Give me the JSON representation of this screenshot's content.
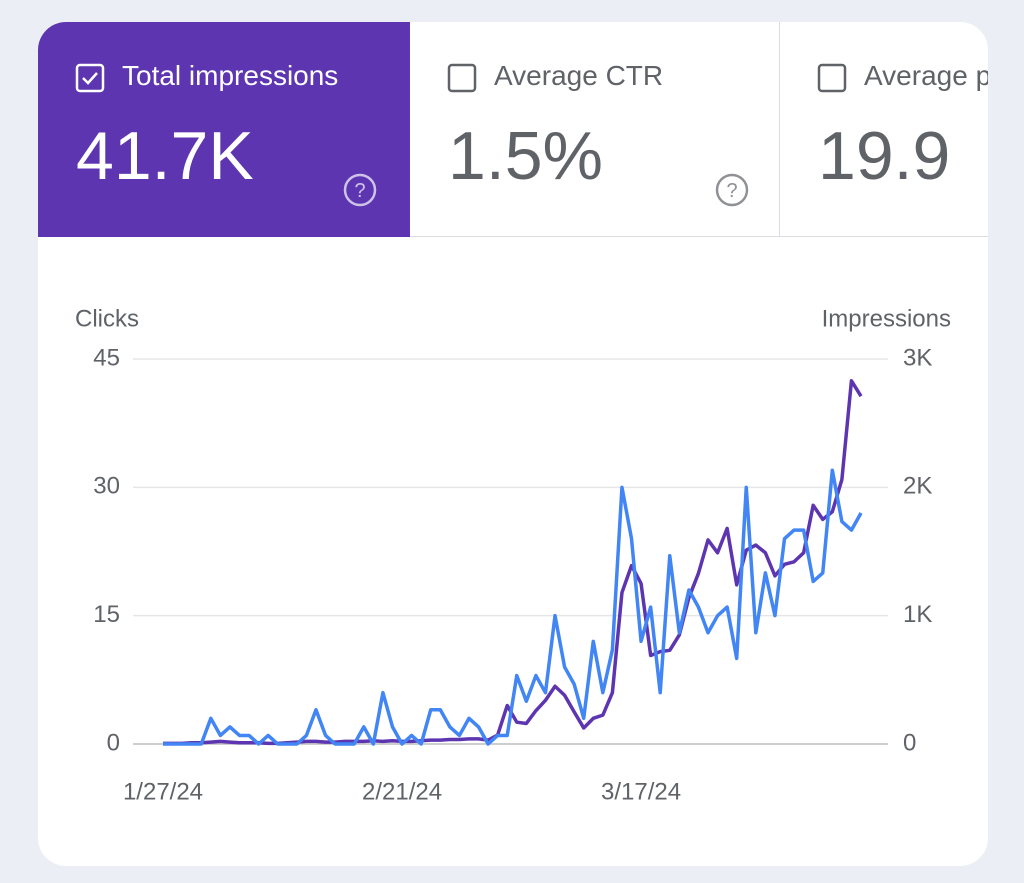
{
  "cards": [
    {
      "label": "Total impressions",
      "value": "41.7K",
      "selected": true
    },
    {
      "label": "Average CTR",
      "value": "1.5%",
      "selected": false
    },
    {
      "label": "Average position",
      "value": "19.9",
      "selected": false
    }
  ],
  "chart_data": {
    "type": "line",
    "categories": [
      "1/27/24",
      null,
      null,
      null,
      null,
      null,
      null,
      null,
      null,
      null,
      null,
      null,
      null,
      null,
      null,
      null,
      null,
      null,
      null,
      null,
      null,
      null,
      null,
      null,
      null,
      "2/21/24",
      null,
      null,
      null,
      null,
      null,
      null,
      null,
      null,
      null,
      null,
      null,
      null,
      null,
      null,
      null,
      null,
      null,
      null,
      null,
      null,
      null,
      null,
      null,
      null,
      "3/17/24",
      null,
      null,
      null,
      null,
      null,
      null,
      null,
      null,
      null,
      null,
      null,
      null,
      null,
      null,
      null,
      null,
      null,
      null,
      null,
      null,
      null,
      null,
      null
    ],
    "series": [
      {
        "name": "Clicks",
        "color": "#4285f4",
        "values": [
          0,
          0,
          0,
          0,
          0,
          3,
          1,
          2,
          1,
          1,
          0,
          1,
          0,
          0,
          0,
          1,
          4,
          1,
          0,
          0,
          0,
          2,
          0,
          6,
          2,
          0,
          1,
          0,
          4,
          4,
          2,
          1,
          3,
          2,
          0,
          1,
          1,
          8,
          5,
          8,
          6,
          15,
          9,
          7,
          3,
          12,
          6,
          11,
          30,
          24,
          12,
          16,
          6,
          22,
          13,
          18,
          16,
          13,
          15,
          16,
          10,
          30,
          13,
          20,
          15,
          24,
          25,
          25,
          19,
          20,
          32,
          26,
          25,
          27
        ]
      },
      {
        "name": "Impressions",
        "color": "#5e35b1",
        "axis": "y2",
        "values": [
          5,
          5,
          5,
          10,
          10,
          15,
          20,
          15,
          10,
          10,
          10,
          5,
          5,
          10,
          15,
          20,
          20,
          15,
          15,
          20,
          20,
          20,
          25,
          20,
          25,
          20,
          20,
          25,
          30,
          30,
          35,
          35,
          40,
          40,
          30,
          70,
          300,
          170,
          160,
          260,
          340,
          450,
          380,
          250,
          125,
          200,
          225,
          400,
          1180,
          1390,
          1250,
          690,
          720,
          730,
          850,
          1140,
          1330,
          1590,
          1490,
          1680,
          1240,
          1510,
          1550,
          1490,
          1310,
          1400,
          1420,
          1490,
          1860,
          1750,
          1810,
          2060,
          2830,
          2710
        ]
      }
    ],
    "ylim": [
      0,
      45
    ],
    "yticks": [
      0,
      15,
      30,
      45
    ],
    "y2lim": [
      0,
      3000
    ],
    "y2ticks": [
      0,
      {
        "value": 1000,
        "label": "1K"
      },
      {
        "value": 2000,
        "label": "2K"
      },
      {
        "value": 3000,
        "label": "3K"
      }
    ],
    "grid": true
  }
}
